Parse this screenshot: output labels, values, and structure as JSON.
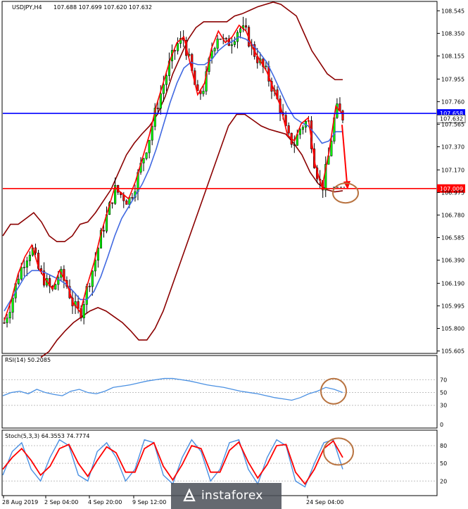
{
  "chart_data": {
    "type": "candlestick",
    "symbol_label": "USDJPY,H4",
    "ohlc_label": "107.688 107.699 107.620 107.632",
    "price_ticks": [
      "108.545",
      "108.350",
      "108.155",
      "107.955",
      "107.760",
      "107.565",
      "107.370",
      "107.170",
      "106.975",
      "106.780",
      "106.585",
      "106.390",
      "106.190",
      "105.995",
      "105.800",
      "105.605"
    ],
    "price_range": [
      105.59,
      108.62
    ],
    "levels": [
      {
        "label": "107.658",
        "price": 107.658,
        "color": "#0000ff"
      },
      {
        "label": "107.009",
        "price": 107.009,
        "color": "#ff0000"
      }
    ],
    "current_label": "107.632",
    "close_path": [
      105.85,
      106.02,
      106.25,
      106.4,
      106.5,
      106.3,
      106.2,
      106.12,
      106.28,
      106.18,
      106.0,
      105.92,
      106.15,
      106.35,
      106.6,
      106.8,
      107.0,
      106.95,
      106.9,
      107.05,
      107.25,
      107.45,
      107.7,
      107.9,
      108.1,
      108.25,
      108.3,
      108.05,
      107.8,
      107.9,
      108.2,
      108.35,
      108.25,
      108.3,
      108.4,
      108.35,
      108.2,
      108.1,
      108.0,
      107.85,
      107.7,
      107.45,
      107.4,
      107.55,
      107.6,
      107.2,
      107.0,
      107.3,
      107.7,
      107.63
    ],
    "sma_path": [
      105.95,
      106.05,
      106.15,
      106.25,
      106.3,
      106.3,
      106.28,
      106.25,
      106.22,
      106.18,
      106.12,
      106.05,
      106.05,
      106.12,
      106.25,
      106.42,
      106.6,
      106.75,
      106.85,
      106.95,
      107.05,
      107.18,
      107.35,
      107.55,
      107.75,
      107.92,
      108.05,
      108.1,
      108.08,
      108.08,
      108.12,
      108.2,
      108.25,
      108.28,
      108.32,
      108.3,
      108.25,
      108.18,
      108.1,
      107.98,
      107.85,
      107.72,
      107.62,
      107.58,
      107.55,
      107.48,
      107.4,
      107.42,
      107.5,
      107.5
    ],
    "bb_upper": [
      106.6,
      106.7,
      106.7,
      106.75,
      106.8,
      106.72,
      106.6,
      106.55,
      106.55,
      106.6,
      106.7,
      106.72,
      106.8,
      106.9,
      107.0,
      107.15,
      107.3,
      107.4,
      107.48,
      107.55,
      107.65,
      107.8,
      108.0,
      108.15,
      108.3,
      108.4,
      108.45,
      108.45,
      108.45,
      108.45,
      108.5,
      108.52,
      108.55,
      108.58,
      108.6,
      108.62,
      108.6,
      108.55,
      108.5,
      108.35,
      108.2,
      108.1,
      108.0,
      107.95,
      107.95
    ],
    "bb_lower": [
      105.55,
      105.6,
      105.7,
      105.78,
      105.85,
      105.9,
      105.95,
      105.98,
      105.95,
      105.9,
      105.85,
      105.78,
      105.7,
      105.7,
      105.8,
      105.95,
      106.15,
      106.35,
      106.55,
      106.75,
      106.95,
      107.15,
      107.35,
      107.55,
      107.65,
      107.65,
      107.6,
      107.55,
      107.52,
      107.5,
      107.48,
      107.4,
      107.3,
      107.15,
      107.05,
      107.0,
      106.98,
      106.99
    ],
    "rsi": {
      "label": "RSI(14) 50.2085",
      "levels": [
        "70",
        "50",
        "30",
        "0"
      ],
      "values": [
        45,
        50,
        52,
        48,
        55,
        50,
        47,
        45,
        52,
        55,
        50,
        48,
        52,
        58,
        60,
        62,
        65,
        68,
        70,
        72,
        72,
        70,
        68,
        65,
        62,
        60,
        58,
        55,
        52,
        50,
        48,
        45,
        42,
        40,
        38,
        42,
        48,
        52,
        58,
        55,
        50
      ]
    },
    "stoch": {
      "label": "Stoch(5,3,3) 64.3553 74.7774",
      "levels": [
        "80",
        "50",
        "20"
      ],
      "main": [
        30,
        70,
        85,
        40,
        20,
        60,
        90,
        80,
        30,
        20,
        70,
        85,
        60,
        20,
        40,
        90,
        85,
        30,
        15,
        60,
        90,
        70,
        20,
        40,
        85,
        90,
        40,
        15,
        60,
        90,
        80,
        20,
        10,
        50,
        85,
        90,
        40
      ],
      "signal": [
        40,
        60,
        75,
        55,
        30,
        45,
        75,
        82,
        50,
        28,
        55,
        78,
        68,
        35,
        35,
        75,
        85,
        45,
        22,
        48,
        80,
        75,
        35,
        35,
        72,
        86,
        52,
        25,
        48,
        80,
        82,
        35,
        15,
        40,
        75,
        88,
        60
      ]
    },
    "time_ticks": [
      "28 Aug 2019",
      "2 Sep 04:00",
      "4 Sep 20:00",
      "9 Sep 12:00",
      "24 Sep 04:00"
    ],
    "annotation_color": "#ff0000",
    "circle_color": "#b87340",
    "bull_color": "#00ff00",
    "bear_color": "#ff0000"
  },
  "watermark": "instaforex"
}
